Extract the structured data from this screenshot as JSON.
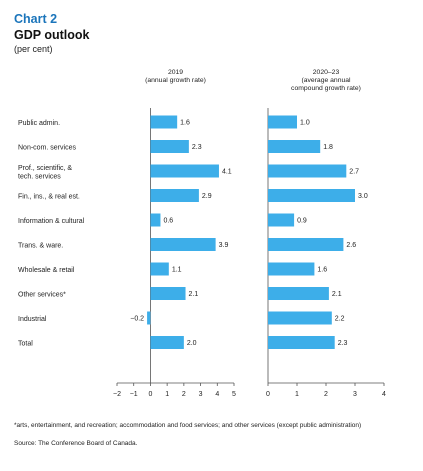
{
  "header": {
    "chart_label": "Chart 2",
    "title": "GDP outlook",
    "subtitle": "(per cent)"
  },
  "footer": {
    "footnote": "*arts, entertainment, and recreation; accommodation and food services; and other services (except public administration)",
    "source": "Source: The Conference Board of Canada."
  },
  "colors": {
    "bar": "#3daee9",
    "axis": "#555555",
    "text": "#222222"
  },
  "chart_data": {
    "type": "bar",
    "orientation": "horizontal",
    "categories": [
      "Public admin.",
      "Non-com. services",
      "Prof., scientific, &\ntech. services",
      "Fin., ins., & real est.",
      "Information & cultural",
      "Trans. & ware.",
      "Wholesale & retail",
      "Other services*",
      "Industrial",
      "Total"
    ],
    "panels": [
      {
        "name": "2019",
        "header": [
          "2019",
          "(annual growth rate)"
        ],
        "values": [
          1.6,
          2.3,
          4.1,
          2.9,
          0.6,
          3.9,
          1.1,
          2.1,
          -0.2,
          2.0
        ],
        "value_labels": [
          "1.6",
          "2.3",
          "4.1",
          "2.9",
          "0.6",
          "3.9",
          "1.1",
          "2.1",
          "−0.2",
          "2.0"
        ],
        "xlim": [
          -2,
          5
        ],
        "ticks": [
          -2,
          -1,
          0,
          1,
          2,
          3,
          4,
          5
        ],
        "tick_labels": [
          "−2",
          "−1",
          "0",
          "1",
          "2",
          "3",
          "4",
          "5"
        ]
      },
      {
        "name": "2020–23",
        "header": [
          "2020–23",
          "(average annual",
          "compound growth rate)"
        ],
        "values": [
          1.0,
          1.8,
          2.7,
          3.0,
          0.9,
          2.6,
          1.6,
          2.1,
          2.2,
          2.3
        ],
        "value_labels": [
          "1.0",
          "1.8",
          "2.7",
          "3.0",
          "0.9",
          "2.6",
          "1.6",
          "2.1",
          "2.2",
          "2.3"
        ],
        "xlim": [
          0,
          4
        ],
        "ticks": [
          0,
          1,
          2,
          3,
          4
        ],
        "tick_labels": [
          "0",
          "1",
          "2",
          "3",
          "4"
        ]
      }
    ],
    "grid": false,
    "legend": "none"
  }
}
